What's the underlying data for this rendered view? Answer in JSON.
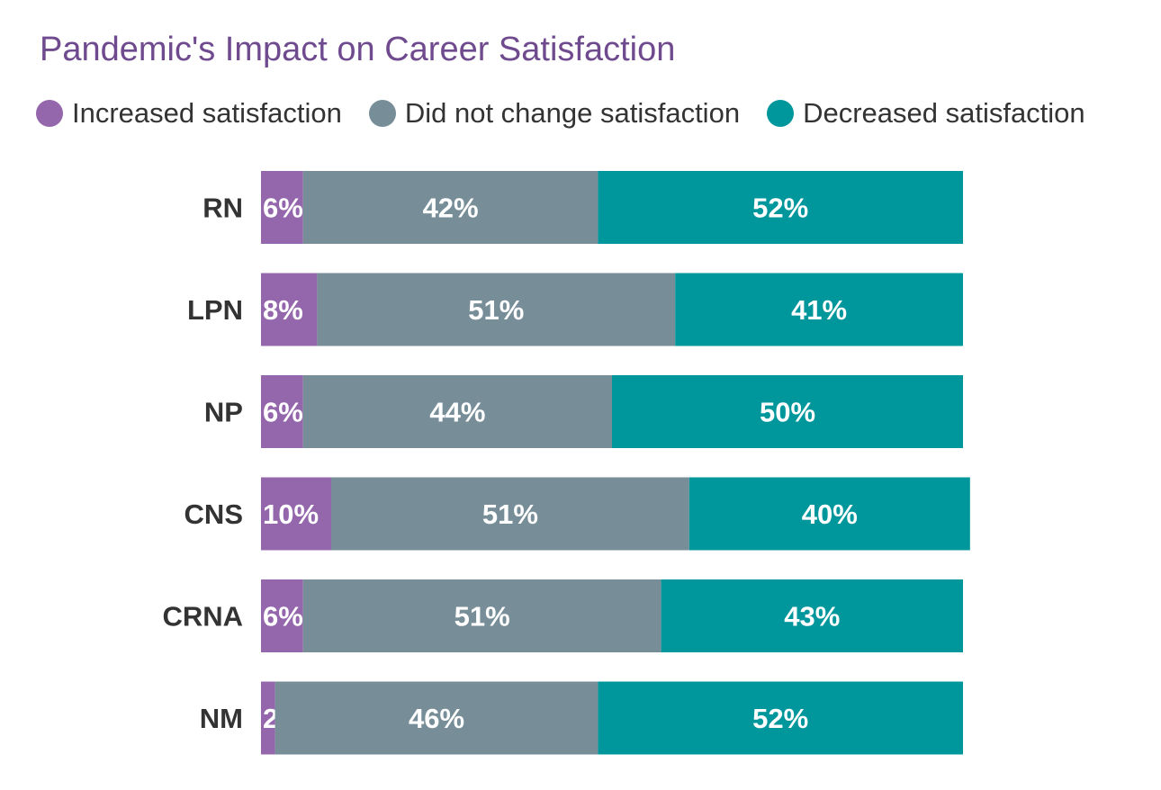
{
  "chart_data": {
    "type": "bar",
    "orientation": "horizontal",
    "stacked": true,
    "title": "Pandemic's Impact on Career Satisfaction",
    "categories": [
      "RN",
      "LPN",
      "NP",
      "CNS",
      "CRNA",
      "NM"
    ],
    "series": [
      {
        "name": "Increased satisfaction",
        "color": "#9467ac",
        "values": [
          6,
          8,
          6,
          10,
          6,
          2
        ]
      },
      {
        "name": "Did not change satisfaction",
        "color": "#778e99",
        "values": [
          42,
          51,
          44,
          51,
          51,
          46
        ]
      },
      {
        "name": "Decreased satisfaction",
        "color": "#00979c",
        "values": [
          52,
          41,
          50,
          40,
          43,
          52
        ]
      }
    ],
    "value_suffix": "%",
    "xlim": [
      0,
      100
    ],
    "grid": false,
    "legend_position": "top"
  }
}
